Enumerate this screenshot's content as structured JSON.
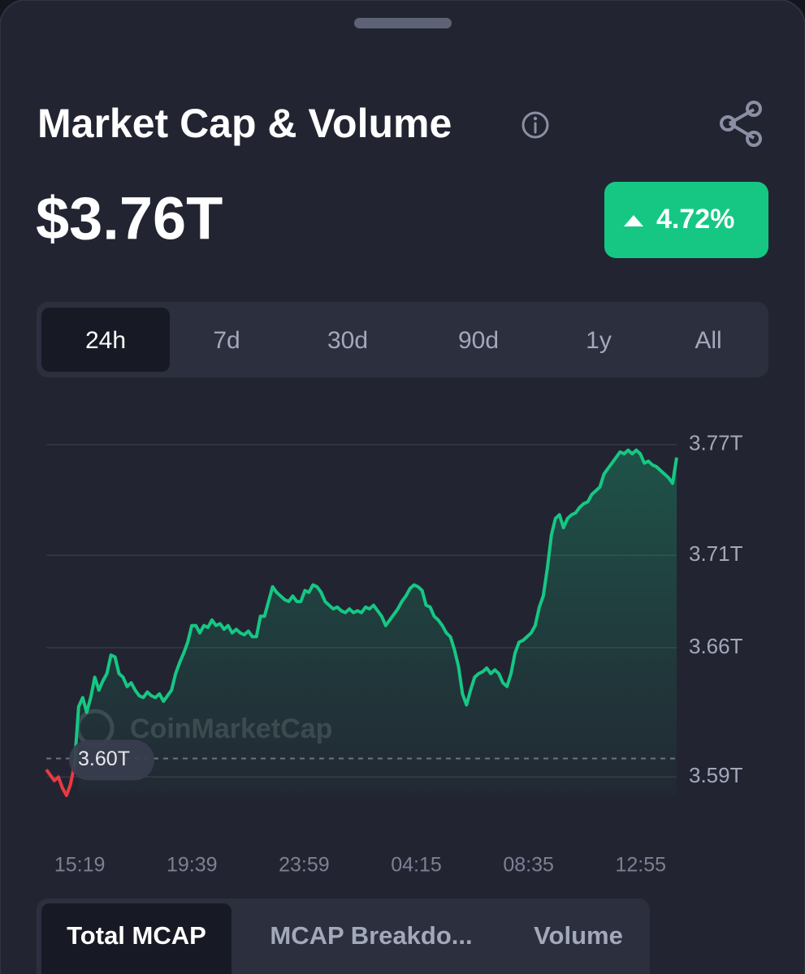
{
  "header": {
    "title": "Market Cap & Volume",
    "value": "$3.76T",
    "change": "4.72%"
  },
  "range_tabs": {
    "items": [
      "24h",
      "7d",
      "30d",
      "90d",
      "1y",
      "All"
    ],
    "selected": 0
  },
  "chart_data": {
    "type": "line",
    "watermark": "CoinMarketCap",
    "xtick_labels": [
      "15:19",
      "19:39",
      "23:59",
      "04:15",
      "08:35",
      "12:55"
    ],
    "series": [
      {
        "values": [
          3.594,
          3.591,
          3.588,
          3.59,
          3.584,
          3.58,
          3.586,
          3.597,
          3.628,
          3.633,
          3.625,
          3.633,
          3.644,
          3.637,
          3.642,
          3.646,
          3.656,
          3.655,
          3.646,
          3.644,
          3.639,
          3.641,
          3.637,
          3.634,
          3.633,
          3.636,
          3.634,
          3.633,
          3.635,
          3.631,
          3.634,
          3.637,
          3.646,
          3.652,
          3.657,
          3.663,
          3.672,
          3.672,
          3.668,
          3.672,
          3.671,
          3.675,
          3.672,
          3.673,
          3.67,
          3.672,
          3.668,
          3.67,
          3.668,
          3.667,
          3.669,
          3.666,
          3.666,
          3.677,
          3.677,
          3.685,
          3.693,
          3.69,
          3.688,
          3.686,
          3.685,
          3.688,
          3.685,
          3.685,
          3.691,
          3.69,
          3.694,
          3.693,
          3.69,
          3.685,
          3.683,
          3.681,
          3.682,
          3.68,
          3.679,
          3.681,
          3.679,
          3.68,
          3.679,
          3.682,
          3.681,
          3.683,
          3.68,
          3.677,
          3.672,
          3.675,
          3.678,
          3.681,
          3.685,
          3.688,
          3.692,
          3.694,
          3.693,
          3.691,
          3.683,
          3.682,
          3.677,
          3.675,
          3.672,
          3.668,
          3.666,
          3.659,
          3.65,
          3.635,
          3.629,
          3.637,
          3.644,
          3.646,
          3.647,
          3.649,
          3.646,
          3.648,
          3.646,
          3.641,
          3.639,
          3.646,
          3.657,
          3.663,
          3.664,
          3.666,
          3.668,
          3.672,
          3.682,
          3.688,
          3.703,
          3.721,
          3.73,
          3.732,
          3.725,
          3.73,
          3.732,
          3.733,
          3.736,
          3.738,
          3.739,
          3.743,
          3.745,
          3.747,
          3.754,
          3.757,
          3.76,
          3.763,
          3.766,
          3.765,
          3.767,
          3.765,
          3.767,
          3.765,
          3.76,
          3.761,
          3.759,
          3.758,
          3.756,
          3.754,
          3.752,
          3.749,
          3.763
        ]
      }
    ],
    "reference": {
      "value": 3.6,
      "label": "3.60T"
    },
    "up_color": "#16c784",
    "down_color": "#ea3943",
    "ylim": [
      3.58,
      3.78
    ],
    "yticks": [
      {
        "value": 3.77,
        "label": "3.77T"
      },
      {
        "value": 3.71,
        "label": "3.71T"
      },
      {
        "value": 3.66,
        "label": "3.66T"
      },
      {
        "value": 3.59,
        "label": "3.59T"
      }
    ],
    "grid": true
  },
  "view_tabs": {
    "items": [
      "Total MCAP",
      "MCAP Breakdo...",
      "Volume"
    ],
    "selected": 0
  }
}
